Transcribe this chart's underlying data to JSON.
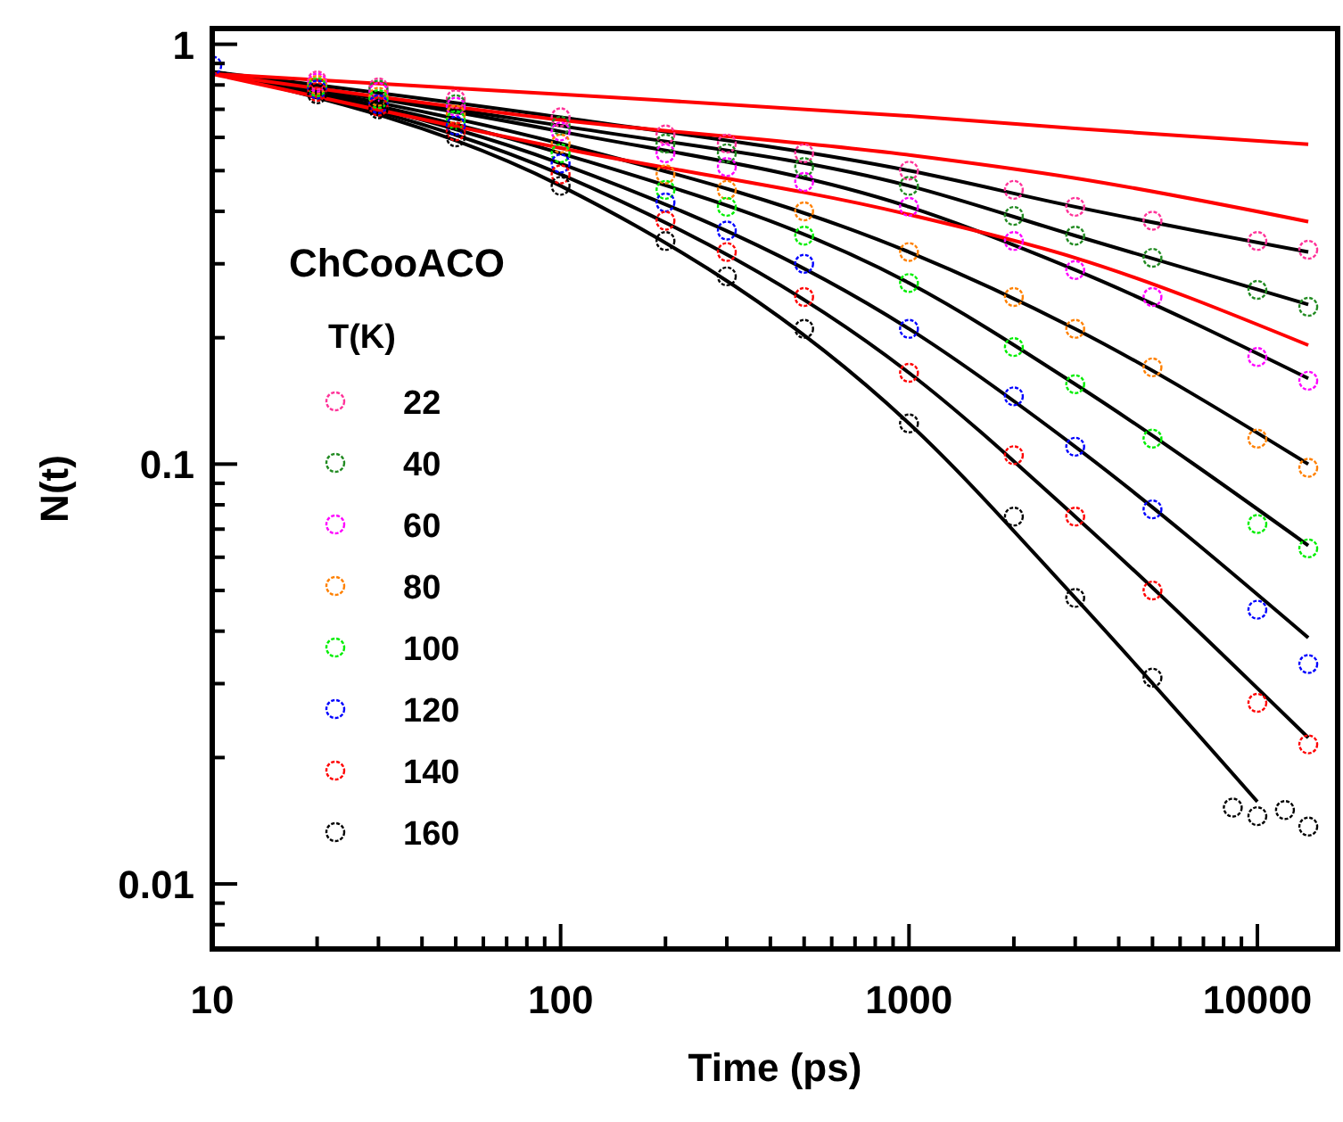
{
  "chart_data": {
    "type": "scatter",
    "xlabel": "Time (ps)",
    "ylabel": "N(t)",
    "log": "xy",
    "marker": "circle",
    "legend": "center left",
    "legend_title": "T(K)",
    "annotations": [
      "ChCooACO"
    ],
    "xlim": [
      10,
      17000
    ],
    "ylim": [
      0.007,
      1.09
    ],
    "xticks": [
      10,
      {
        "value": 20,
        "label": null
      },
      {
        "value": 30,
        "label": null
      },
      {
        "value": 40,
        "label": null
      },
      {
        "value": 50,
        "label": null
      },
      {
        "value": 60,
        "label": null
      },
      {
        "value": 70,
        "label": null
      },
      {
        "value": 80,
        "label": null
      },
      {
        "value": 90,
        "label": null
      },
      100,
      {
        "value": 200,
        "label": null
      },
      {
        "value": 300,
        "label": null
      },
      {
        "value": 400,
        "label": null
      },
      {
        "value": 500,
        "label": null
      },
      {
        "value": 600,
        "label": null
      },
      {
        "value": 700,
        "label": null
      },
      {
        "value": 800,
        "label": null
      },
      {
        "value": 900,
        "label": null
      },
      1000,
      {
        "value": 2000,
        "label": null
      },
      {
        "value": 3000,
        "label": null
      },
      {
        "value": 4000,
        "label": null
      },
      {
        "value": 5000,
        "label": null
      },
      {
        "value": 6000,
        "label": null
      },
      {
        "value": 7000,
        "label": null
      },
      {
        "value": 8000,
        "label": null
      },
      {
        "value": 9000,
        "label": null
      },
      10000
    ],
    "yticks": [
      {
        "value": 0.008,
        "label": null
      },
      {
        "value": 0.009,
        "label": null
      },
      0.01,
      {
        "value": 0.02,
        "label": null
      },
      {
        "value": 0.03,
        "label": null
      },
      {
        "value": 0.04,
        "label": null
      },
      {
        "value": 0.05,
        "label": null
      },
      {
        "value": 0.06,
        "label": null
      },
      {
        "value": 0.07,
        "label": null
      },
      {
        "value": 0.08,
        "label": null
      },
      {
        "value": 0.09,
        "label": null
      },
      0.1,
      {
        "value": 0.2,
        "label": null
      },
      {
        "value": 0.3,
        "label": null
      },
      {
        "value": 0.4,
        "label": null
      },
      {
        "value": 0.5,
        "label": null
      },
      {
        "value": 0.6,
        "label": null
      },
      {
        "value": 0.7,
        "label": null
      },
      {
        "value": 0.8,
        "label": null
      },
      {
        "value": 0.9,
        "label": null
      },
      1
    ],
    "x": [
      20,
      30,
      50,
      100,
      200,
      300,
      500,
      1000,
      2000,
      3000,
      5000,
      10000,
      14000
    ],
    "series": [
      {
        "name": "22",
        "color": "#ff3399",
        "values": [
          0.82,
          0.79,
          0.74,
          0.67,
          0.61,
          0.58,
          0.55,
          0.5,
          0.45,
          0.41,
          0.38,
          0.34,
          0.324
        ]
      },
      {
        "name": "40",
        "color": "#228b22",
        "values": [
          null,
          0.78,
          0.72,
          0.64,
          0.58,
          0.55,
          0.51,
          0.46,
          0.39,
          0.35,
          0.31,
          0.26,
          0.237
        ]
      },
      {
        "name": "60",
        "color": "#ff00ff",
        "values": [
          0.81,
          0.77,
          0.71,
          0.62,
          0.55,
          0.51,
          0.47,
          0.41,
          0.34,
          0.29,
          0.25,
          0.18,
          0.158
        ]
      },
      {
        "name": "80",
        "color": "#ff8000",
        "values": [
          0.8,
          0.75,
          0.68,
          0.58,
          0.49,
          0.45,
          0.4,
          0.32,
          0.25,
          0.21,
          0.17,
          0.115,
          0.098
        ]
      },
      {
        "name": "100",
        "color": "#00ee00",
        "values": [
          0.79,
          0.74,
          0.66,
          0.55,
          0.45,
          0.41,
          0.35,
          0.27,
          0.19,
          0.155,
          0.115,
          0.072,
          0.063
        ]
      },
      {
        "name": "120",
        "color": "#0000ff",
        "x": [
          10,
          20,
          30,
          50,
          100,
          200,
          300,
          500,
          1000,
          2000,
          3000,
          5000,
          10000,
          14000
        ],
        "values": [
          0.89,
          0.78,
          0.72,
          0.64,
          0.52,
          0.42,
          0.36,
          0.3,
          0.21,
          0.145,
          0.11,
          0.078,
          0.045,
          0.0334
        ]
      },
      {
        "name": "140",
        "color": "#ff0000",
        "values": [
          0.77,
          0.71,
          0.62,
          0.49,
          0.38,
          0.32,
          0.25,
          0.165,
          0.105,
          0.075,
          0.05,
          0.027,
          0.0215
        ]
      },
      {
        "name": "160",
        "color": "#000000",
        "x": [
          20,
          30,
          50,
          100,
          200,
          300,
          500,
          1000,
          2000,
          3000,
          5000,
          8500,
          10000,
          12000,
          14000
        ],
        "values": [
          0.76,
          0.7,
          0.6,
          0.46,
          0.34,
          0.28,
          0.21,
          0.125,
          0.075,
          0.048,
          0.031,
          0.0152,
          0.0145,
          0.015,
          0.0137
        ]
      },
      {
        "type": "line",
        "marker": "none",
        "color": "#000000",
        "x": [
          10,
          100,
          1000,
          3000,
          14000
        ],
        "values": [
          0.86,
          0.67,
          0.5,
          0.41,
          0.32
        ]
      },
      {
        "type": "line",
        "marker": "none",
        "color": "#000000",
        "x": [
          10,
          100,
          1000,
          3000,
          14000
        ],
        "values": [
          0.86,
          0.64,
          0.46,
          0.35,
          0.24
        ]
      },
      {
        "type": "line",
        "marker": "none",
        "color": "#000000",
        "x": [
          10,
          100,
          1000,
          3000,
          14000
        ],
        "values": [
          0.86,
          0.62,
          0.41,
          0.29,
          0.16
        ]
      },
      {
        "type": "line",
        "marker": "none",
        "color": "#000000",
        "x": [
          10,
          100,
          1000,
          3000,
          14000
        ],
        "values": [
          0.86,
          0.58,
          0.32,
          0.21,
          0.1
        ]
      },
      {
        "type": "line",
        "marker": "none",
        "color": "#000000",
        "x": [
          10,
          100,
          1000,
          3000,
          14000
        ],
        "values": [
          0.86,
          0.55,
          0.27,
          0.155,
          0.064
        ]
      },
      {
        "type": "line",
        "marker": "none",
        "color": "#000000",
        "x": [
          10,
          100,
          1000,
          3000,
          14000
        ],
        "values": [
          0.86,
          0.52,
          0.21,
          0.11,
          0.0386
        ]
      },
      {
        "type": "line",
        "marker": "none",
        "color": "#000000",
        "x": [
          10,
          100,
          1000,
          3000,
          14000
        ],
        "values": [
          0.86,
          0.49,
          0.165,
          0.075,
          0.0223
        ]
      },
      {
        "type": "line",
        "marker": "none",
        "color": "#000000",
        "x": [
          10,
          100,
          1000,
          3000,
          10000
        ],
        "values": [
          0.86,
          0.46,
          0.125,
          0.048,
          0.0157
        ]
      },
      {
        "type": "line",
        "marker": "none",
        "color": "#ff0000",
        "x": [
          10,
          100,
          1000,
          3000,
          14000
        ],
        "values": [
          0.85,
          0.76,
          0.675,
          0.63,
          0.578
        ]
      },
      {
        "type": "line",
        "marker": "none",
        "color": "#ff0000",
        "x": [
          10,
          100,
          1000,
          3000,
          14000
        ],
        "values": [
          0.85,
          0.66,
          0.545,
          0.48,
          0.378
        ]
      },
      {
        "type": "line",
        "marker": "none",
        "color": "#ff0000",
        "x": [
          10,
          100,
          1000,
          3000,
          14000
        ],
        "values": [
          0.85,
          0.566,
          0.393,
          0.31,
          0.192
        ]
      }
    ]
  }
}
